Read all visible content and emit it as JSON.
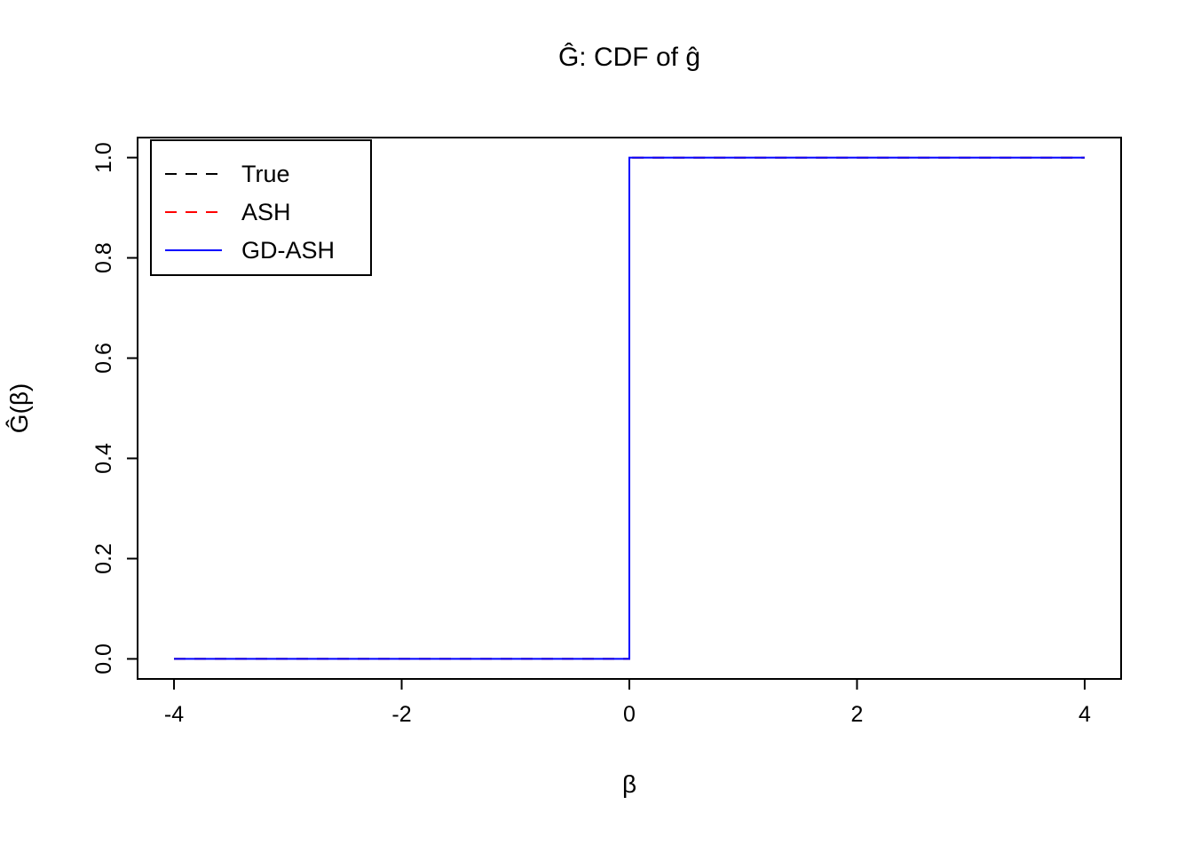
{
  "chart_data": {
    "type": "line",
    "title": "Ĝ: CDF of ĝ",
    "xlabel": "β",
    "ylabel": "Ĝ(β)",
    "xlim": [
      -4,
      4
    ],
    "ylim": [
      0,
      1
    ],
    "grid": false,
    "x_ticks": {
      "values": [
        -4,
        -2,
        0,
        2,
        4
      ],
      "labels": [
        "-4",
        "-2",
        "0",
        "2",
        "4"
      ]
    },
    "y_ticks": {
      "values": [
        0,
        0.2,
        0.4,
        0.6,
        0.8,
        1.0
      ],
      "labels": [
        "0.0",
        "0.2",
        "0.4",
        "0.6",
        "0.8",
        "1.0"
      ]
    },
    "legend": {
      "position": "topleft",
      "entries": [
        {
          "label": "True",
          "color": "#000000",
          "dash": "dashed"
        },
        {
          "label": "ASH",
          "color": "#FF0000",
          "dash": "dashed"
        },
        {
          "label": "GD-ASH",
          "color": "#0000FF",
          "dash": "solid"
        }
      ]
    },
    "series": [
      {
        "name": "True",
        "color": "#000000",
        "dash": "dashed",
        "points": [
          [
            -4,
            0
          ],
          [
            0,
            0
          ],
          [
            0,
            1
          ],
          [
            4,
            1
          ]
        ]
      },
      {
        "name": "ASH",
        "color": "#FF0000",
        "dash": "dashed",
        "points": [
          [
            -4,
            0
          ],
          [
            0,
            0
          ],
          [
            0,
            1
          ],
          [
            4,
            1
          ]
        ]
      },
      {
        "name": "GD-ASH",
        "color": "#0000FF",
        "dash": "solid",
        "points": [
          [
            -4,
            0
          ],
          [
            0,
            0
          ],
          [
            0,
            1
          ],
          [
            4,
            1
          ]
        ]
      }
    ]
  }
}
